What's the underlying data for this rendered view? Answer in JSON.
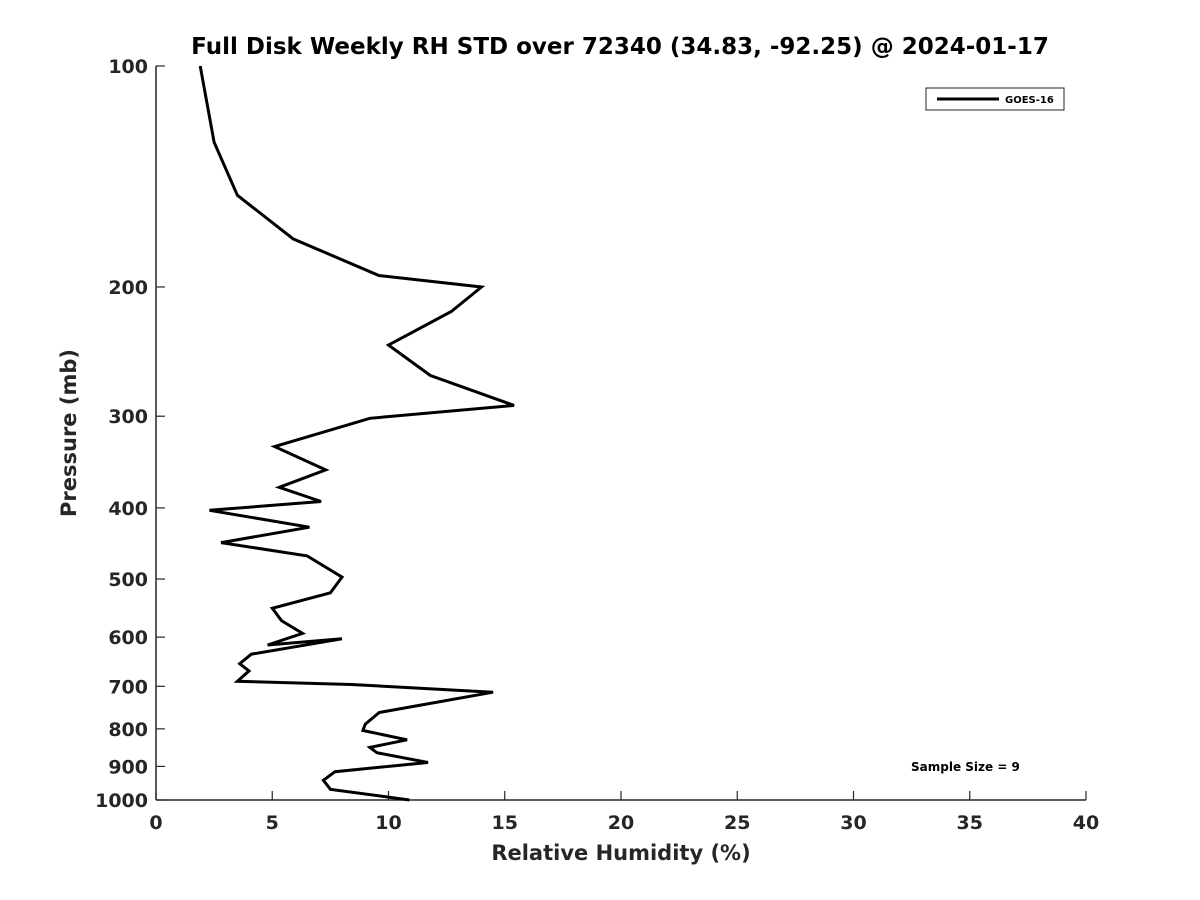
{
  "chart_data": {
    "type": "line",
    "title": "Full Disk Weekly RH STD over 72340 (34.83, -92.25) @ 2024-01-17",
    "xlabel": "Relative Humidity (%)",
    "ylabel": "Pressure (mb)",
    "xlim": [
      0,
      40
    ],
    "ylim": [
      100,
      1000
    ],
    "y_scale": "log",
    "y_reversed": true,
    "xticks": [
      0,
      5,
      10,
      15,
      20,
      25,
      30,
      35,
      40
    ],
    "yticks": [
      100,
      200,
      300,
      400,
      500,
      600,
      700,
      800,
      900,
      1000
    ],
    "legend": {
      "position": "top-right",
      "entries": [
        "GOES-16"
      ]
    },
    "annotation": "Sample Size = 9",
    "grid": false,
    "series": [
      {
        "name": "GOES-16",
        "color": "#000000",
        "x": [
          1.9,
          2.5,
          3.5,
          5.9,
          9.6,
          14.0,
          12.7,
          10.0,
          11.8,
          15.4,
          9.2,
          5.1,
          7.3,
          5.3,
          7.1,
          2.3,
          6.6,
          2.8,
          6.5,
          8.0,
          7.5,
          5.0,
          5.4,
          6.3,
          4.8,
          8.0,
          4.1,
          3.6,
          4.0,
          3.5,
          8.4,
          14.5,
          9.6,
          9.0,
          8.9,
          10.8,
          9.2,
          9.5,
          11.7,
          7.7,
          7.2,
          7.5,
          10.9
        ],
        "y": [
          100,
          127,
          150,
          172,
          193,
          200,
          216,
          240,
          264,
          290,
          302,
          330,
          355,
          375,
          392,
          403,
          425,
          446,
          465,
          497,
          522,
          548,
          570,
          593,
          615,
          603,
          633,
          652,
          667,
          689,
          696,
          713,
          760,
          788,
          804,
          828,
          848,
          862,
          889,
          915,
          940,
          967,
          1000
        ]
      }
    ]
  }
}
